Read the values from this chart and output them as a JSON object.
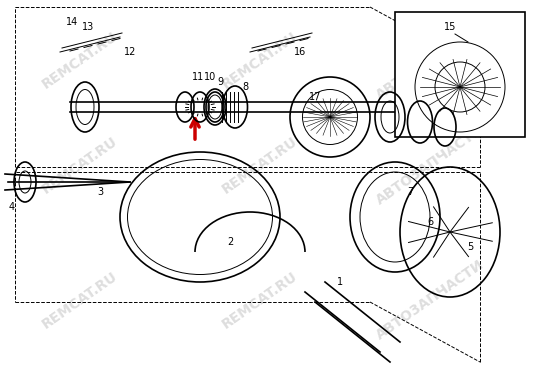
{
  "title": "",
  "bg_color": "#ffffff",
  "line_color": "#000000",
  "arrow_color": "#cc0000",
  "watermark_color": "#cccccc",
  "watermarks": [
    "REMCAT.RU",
    "АВТО3АПЧАСТИ"
  ],
  "part_numbers": [
    "1",
    "2",
    "3",
    "4",
    "5",
    "6",
    "7",
    "8",
    "9",
    "10",
    "11",
    "12",
    "13",
    "14",
    "15",
    "16",
    "17"
  ],
  "fig_width": 5.34,
  "fig_height": 3.92,
  "dpi": 100
}
